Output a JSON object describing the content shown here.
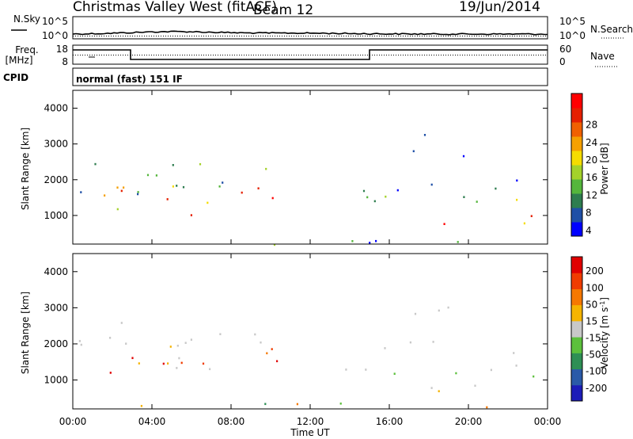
{
  "header": {
    "station": "Christmas Valley West (fitACF)",
    "beam": "Beam 12",
    "date": "19/Jun/2014"
  },
  "summary": {
    "nsky_label": "N.Sky",
    "nsky_ticks": [
      "10^5",
      "10^0"
    ],
    "nsearch_label": "N.Search",
    "nsearch_ticks": [
      "10^5",
      "10^0"
    ],
    "freq_label_line1": "Freq.",
    "freq_label_line2": "[MHz]",
    "freq_ticks": [
      "18",
      "8"
    ],
    "nave_label": "Nave",
    "nave_ticks": [
      "60",
      "0"
    ],
    "cpid_label": "CPID",
    "cpid_text": "normal (fast) 151 IF"
  },
  "chart_data": [
    {
      "type": "heatmap",
      "panel": "power",
      "ylabel": "Slant Range [km]",
      "xlabel": "Time UT",
      "x_ticks": [
        "00:00",
        "04:00",
        "08:00",
        "12:00",
        "16:00",
        "20:00",
        "00:00"
      ],
      "y_ticks": [
        1000,
        2000,
        3000,
        4000
      ],
      "ylim": [
        200,
        4500
      ],
      "colorbar_label": "Power [dB]",
      "colorbar_ticks": [
        "28",
        "24",
        "20",
        "16",
        "12",
        "8",
        "4"
      ],
      "colorbar_colors": [
        "#0000ff",
        "#1f4fa6",
        "#2e7d4f",
        "#55b63c",
        "#a4d22a",
        "#f5dc00",
        "#f5a000",
        "#f06000",
        "#e52000",
        "#ff0000"
      ]
    },
    {
      "type": "heatmap",
      "panel": "velocity",
      "ylabel": "Slant Range [km]",
      "xlabel": "Time UT",
      "x_ticks": [
        "00:00",
        "04:00",
        "08:00",
        "12:00",
        "16:00",
        "20:00",
        "00:00"
      ],
      "y_ticks": [
        1000,
        2000,
        3000,
        4000
      ],
      "ylim": [
        200,
        4500
      ],
      "colorbar_label": "Velocity [m s^-1]",
      "colorbar_ticks": [
        "200",
        "100",
        "50",
        "15",
        "-15",
        "-50",
        "-100",
        "-200"
      ],
      "colorbar_colors": [
        "#1c1cb8",
        "#2a5aa8",
        "#2e8f55",
        "#5cc03c",
        "#c8c8c8",
        "#f5b400",
        "#f57800",
        "#f03c00",
        "#e00000"
      ]
    }
  ],
  "x_axis_title": "Time UT"
}
